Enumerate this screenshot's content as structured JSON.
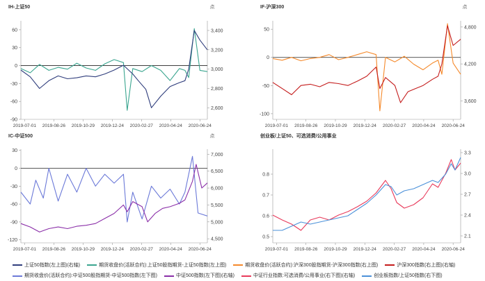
{
  "chart_data": [
    {
      "type": "line",
      "title": "IH-上证50",
      "y2unit": "点",
      "x_ticks": [
        "2019-07-01",
        "2019-08-26",
        "2019-10-29",
        "2019-12-24",
        "2020-02-27",
        "2020-04-24",
        "2020-06-24"
      ],
      "ylim": [
        -90,
        75
      ],
      "yticks": [
        "60",
        "30",
        "0",
        "-30",
        "-60",
        "-90"
      ],
      "y2lim": [
        2480,
        3500
      ],
      "y2ticks": [
        "3,400",
        "3,200",
        "3,000",
        "2,800",
        "2,600"
      ],
      "series": [
        {
          "name": "期货收盘价(活跃合约):上证50股指期货-上证50指数(左上图)",
          "color": "#3aa58f",
          "axis": "left",
          "points": [
            [
              0,
              -5
            ],
            [
              0.05,
              -12
            ],
            [
              0.1,
              2
            ],
            [
              0.15,
              -8
            ],
            [
              0.2,
              -3
            ],
            [
              0.25,
              -6
            ],
            [
              0.3,
              4
            ],
            [
              0.35,
              -4
            ],
            [
              0.4,
              -8
            ],
            [
              0.45,
              3
            ],
            [
              0.5,
              10
            ],
            [
              0.55,
              5
            ],
            [
              0.57,
              -75
            ],
            [
              0.6,
              -5
            ],
            [
              0.65,
              -10
            ],
            [
              0.7,
              0
            ],
            [
              0.75,
              -8
            ],
            [
              0.8,
              -25
            ],
            [
              0.85,
              -5
            ],
            [
              0.88,
              -8
            ],
            [
              0.9,
              -20
            ],
            [
              0.93,
              62
            ],
            [
              0.96,
              -8
            ],
            [
              1.0,
              -10
            ]
          ]
        },
        {
          "name": "上证50指数(左上图)(右轴)",
          "color": "#2f3d7c",
          "axis": "right",
          "points": [
            [
              0,
              2990
            ],
            [
              0.05,
              2920
            ],
            [
              0.1,
              2800
            ],
            [
              0.15,
              2880
            ],
            [
              0.2,
              2930
            ],
            [
              0.25,
              2900
            ],
            [
              0.3,
              2910
            ],
            [
              0.35,
              2930
            ],
            [
              0.4,
              2920
            ],
            [
              0.45,
              2950
            ],
            [
              0.5,
              2990
            ],
            [
              0.55,
              3040
            ],
            [
              0.6,
              2950
            ],
            [
              0.63,
              2880
            ],
            [
              0.67,
              2790
            ],
            [
              0.7,
              2600
            ],
            [
              0.75,
              2720
            ],
            [
              0.8,
              2820
            ],
            [
              0.85,
              2860
            ],
            [
              0.88,
              2880
            ],
            [
              0.9,
              3000
            ],
            [
              0.93,
              3400
            ],
            [
              0.96,
              3300
            ],
            [
              1.0,
              3200
            ]
          ]
        }
      ]
    },
    {
      "type": "line",
      "title": "IF-沪深300",
      "y2unit": "点",
      "x_ticks": [
        "2019-07-01",
        "2019-08-26",
        "2019-10-29",
        "2019-12-24",
        "2020-02-27",
        "2020-04-24",
        "2020-06-24"
      ],
      "ylim": [
        -110,
        65
      ],
      "yticks": [
        "50",
        "0",
        "-50",
        "-100"
      ],
      "y2lim": [
        3300,
        4900
      ],
      "y2ticks": [
        "4,800",
        "4,200",
        "3,600"
      ],
      "series": [
        {
          "name": "期货收盘价(活跃合约):沪深300股指期货-沪深300指数(右上图)",
          "color": "#f5892a",
          "axis": "left",
          "points": [
            [
              0,
              -2
            ],
            [
              0.05,
              -5
            ],
            [
              0.1,
              0
            ],
            [
              0.15,
              -6
            ],
            [
              0.2,
              -2
            ],
            [
              0.25,
              0
            ],
            [
              0.3,
              5
            ],
            [
              0.35,
              -4
            ],
            [
              0.4,
              0
            ],
            [
              0.45,
              5
            ],
            [
              0.5,
              10
            ],
            [
              0.55,
              5
            ],
            [
              0.57,
              -95
            ],
            [
              0.6,
              0
            ],
            [
              0.65,
              -8
            ],
            [
              0.7,
              2
            ],
            [
              0.75,
              -12
            ],
            [
              0.8,
              -22
            ],
            [
              0.85,
              -10
            ],
            [
              0.88,
              -5
            ],
            [
              0.9,
              -30
            ],
            [
              0.93,
              60
            ],
            [
              0.96,
              -10
            ],
            [
              1.0,
              -30
            ]
          ]
        },
        {
          "name": "沪深300指数(右上图)(右轴)",
          "color": "#c41b1b",
          "axis": "right",
          "points": [
            [
              0,
              3900
            ],
            [
              0.05,
              3800
            ],
            [
              0.1,
              3700
            ],
            [
              0.15,
              3850
            ],
            [
              0.2,
              3870
            ],
            [
              0.25,
              3830
            ],
            [
              0.3,
              3900
            ],
            [
              0.35,
              3880
            ],
            [
              0.4,
              3850
            ],
            [
              0.45,
              3920
            ],
            [
              0.5,
              4000
            ],
            [
              0.55,
              4150
            ],
            [
              0.57,
              3800
            ],
            [
              0.6,
              3980
            ],
            [
              0.65,
              3850
            ],
            [
              0.68,
              3570
            ],
            [
              0.72,
              3750
            ],
            [
              0.76,
              3800
            ],
            [
              0.8,
              3850
            ],
            [
              0.85,
              3950
            ],
            [
              0.88,
              4000
            ],
            [
              0.9,
              4200
            ],
            [
              0.93,
              4820
            ],
            [
              0.96,
              4500
            ],
            [
              1.0,
              4600
            ]
          ]
        }
      ]
    },
    {
      "type": "line",
      "title": "IC-中证500",
      "y2unit": "点",
      "x_ticks": [
        "2019-07-01",
        "2019-08-26",
        "2019-10-29",
        "2019-12-24",
        "2020-02-27",
        "2020-04-24",
        "2020-06-24"
      ],
      "ylim": [
        -125,
        32
      ],
      "yticks": [
        "30",
        "0",
        "-30",
        "-60",
        "-90",
        "-120"
      ],
      "y2lim": [
        4380,
        7150
      ],
      "y2ticks": [
        "7,000",
        "6,500",
        "6,000",
        "5,500",
        "5,000",
        "4,500"
      ],
      "series": [
        {
          "name": "期货收盘价(活跃合约):中证500股指期货-中证500指数(左下图)",
          "color": "#6b79d8",
          "axis": "left",
          "points": [
            [
              0,
              -40
            ],
            [
              0.05,
              -60
            ],
            [
              0.08,
              -20
            ],
            [
              0.12,
              -50
            ],
            [
              0.15,
              0
            ],
            [
              0.2,
              -55
            ],
            [
              0.25,
              -10
            ],
            [
              0.3,
              -40
            ],
            [
              0.35,
              0
            ],
            [
              0.4,
              -30
            ],
            [
              0.45,
              -10
            ],
            [
              0.5,
              -25
            ],
            [
              0.55,
              -10
            ],
            [
              0.57,
              -90
            ],
            [
              0.6,
              -40
            ],
            [
              0.65,
              -85
            ],
            [
              0.7,
              -30
            ],
            [
              0.75,
              -50
            ],
            [
              0.8,
              -35
            ],
            [
              0.85,
              -60
            ],
            [
              0.88,
              -40
            ],
            [
              0.92,
              20
            ],
            [
              0.95,
              -75
            ],
            [
              1.0,
              -80
            ]
          ]
        },
        {
          "name": "中证500指数(左下图)(右轴)",
          "color": "#8a2ea8",
          "axis": "right",
          "points": [
            [
              0,
              4950
            ],
            [
              0.05,
              4850
            ],
            [
              0.1,
              4700
            ],
            [
              0.15,
              4800
            ],
            [
              0.2,
              4850
            ],
            [
              0.25,
              4800
            ],
            [
              0.3,
              4870
            ],
            [
              0.35,
              4900
            ],
            [
              0.4,
              4950
            ],
            [
              0.45,
              5100
            ],
            [
              0.5,
              5250
            ],
            [
              0.55,
              5500
            ],
            [
              0.57,
              5300
            ],
            [
              0.6,
              5600
            ],
            [
              0.65,
              5450
            ],
            [
              0.68,
              5000
            ],
            [
              0.72,
              5250
            ],
            [
              0.76,
              5400
            ],
            [
              0.8,
              5450
            ],
            [
              0.85,
              5550
            ],
            [
              0.88,
              5650
            ],
            [
              0.92,
              6200
            ],
            [
              0.94,
              6700
            ],
            [
              0.97,
              6000
            ],
            [
              1.0,
              6150
            ]
          ]
        }
      ]
    },
    {
      "type": "line",
      "title": "创业板/上证50、可选消费/公用事业",
      "x_ticks": [
        "2019-07-01",
        "2019-08-26",
        "2019-10-29",
        "2019-12-24",
        "2020-02-27",
        "2020-04-24",
        "2020-06-24"
      ],
      "ylim": [
        0.47,
        0.92
      ],
      "yticks": [
        "0.8",
        "0.7",
        "0.6",
        "0.5"
      ],
      "y2lim": [
        2.0,
        3.35
      ],
      "y2ticks": [
        "3.3",
        "3.0",
        "2.7",
        "2.4",
        "2.1"
      ],
      "series": [
        {
          "name": "中证行业指数:可选消费/公用事业(右下图)(右轴)",
          "color": "#e8395a",
          "axis": "right",
          "points": [
            [
              0,
              2.4
            ],
            [
              0.05,
              2.33
            ],
            [
              0.1,
              2.27
            ],
            [
              0.15,
              2.18
            ],
            [
              0.2,
              2.33
            ],
            [
              0.25,
              2.37
            ],
            [
              0.3,
              2.33
            ],
            [
              0.35,
              2.4
            ],
            [
              0.4,
              2.45
            ],
            [
              0.45,
              2.52
            ],
            [
              0.5,
              2.6
            ],
            [
              0.55,
              2.72
            ],
            [
              0.6,
              2.9
            ],
            [
              0.63,
              2.78
            ],
            [
              0.66,
              2.58
            ],
            [
              0.7,
              2.5
            ],
            [
              0.75,
              2.55
            ],
            [
              0.8,
              2.65
            ],
            [
              0.85,
              2.85
            ],
            [
              0.88,
              2.8
            ],
            [
              0.92,
              3.0
            ],
            [
              0.95,
              3.2
            ],
            [
              0.97,
              3.05
            ],
            [
              1.0,
              3.15
            ]
          ]
        },
        {
          "name": "创业板指数/上证50指数(右下图)",
          "color": "#4a90d9",
          "axis": "left",
          "points": [
            [
              0,
              0.53
            ],
            [
              0.05,
              0.53
            ],
            [
              0.1,
              0.55
            ],
            [
              0.15,
              0.57
            ],
            [
              0.2,
              0.56
            ],
            [
              0.25,
              0.57
            ],
            [
              0.3,
              0.58
            ],
            [
              0.35,
              0.59
            ],
            [
              0.4,
              0.6
            ],
            [
              0.45,
              0.63
            ],
            [
              0.5,
              0.66
            ],
            [
              0.55,
              0.7
            ],
            [
              0.6,
              0.75
            ],
            [
              0.63,
              0.74
            ],
            [
              0.66,
              0.7
            ],
            [
              0.7,
              0.72
            ],
            [
              0.75,
              0.73
            ],
            [
              0.8,
              0.75
            ],
            [
              0.85,
              0.77
            ],
            [
              0.88,
              0.76
            ],
            [
              0.92,
              0.8
            ],
            [
              0.95,
              0.85
            ],
            [
              0.97,
              0.82
            ],
            [
              1.0,
              0.88
            ]
          ]
        }
      ]
    }
  ],
  "legend": [
    {
      "label": "上证50指数(左上图)(右轴)",
      "color": "#2f3d7c"
    },
    {
      "label": "期货收盘价(活跃合约):上证50股指期货-上证50指数(左上图)",
      "color": "#3aa58f"
    },
    {
      "label": "期货收盘价(活跃合约):沪深300股指期货-沪深300指数(右上图)",
      "color": "#f5892a"
    },
    {
      "label": "沪深300指数(右上图)(右轴)",
      "color": "#c41b1b"
    },
    {
      "label": "期货收盘价(活跃合约):中证500股指期货-中证500指数(左下图)",
      "color": "#6b79d8"
    },
    {
      "label": "中证500指数(左下图)(右轴)",
      "color": "#8a2ea8"
    },
    {
      "label": "中证行业指数:可选消费/公用事业(右下图)(右轴)",
      "color": "#e8395a"
    },
    {
      "label": "创业板指数/上证50指数(右下图)",
      "color": "#4a90d9"
    }
  ]
}
